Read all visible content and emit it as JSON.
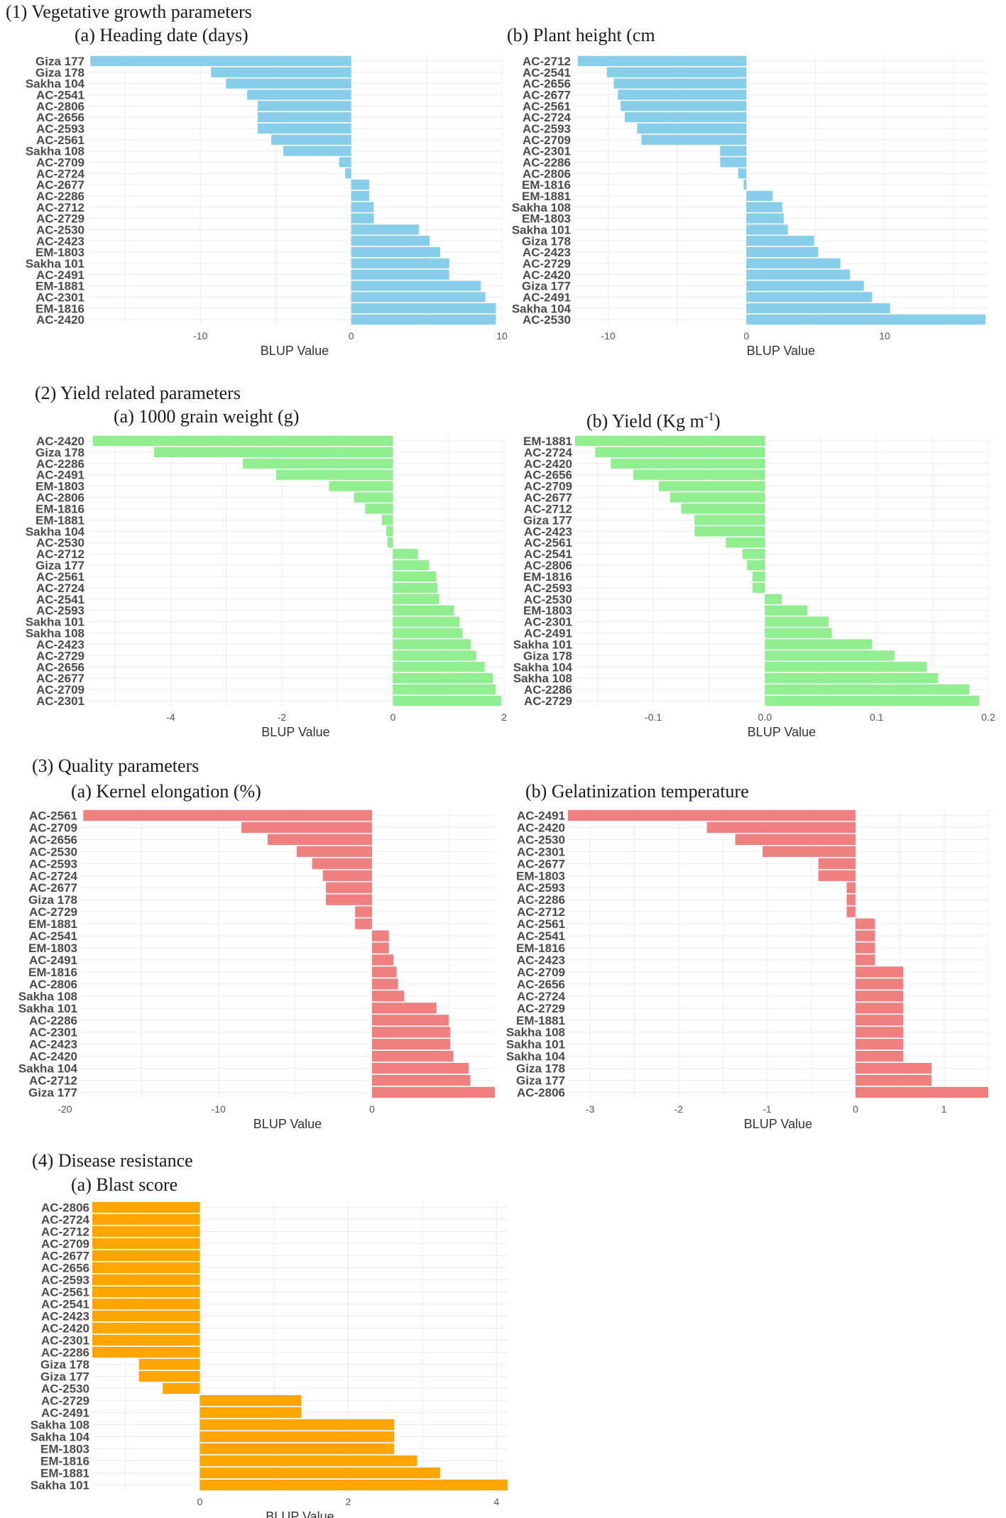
{
  "sections": [
    {
      "title": "(1) Vegetative growth parameters"
    },
    {
      "title": "(2) Yield related parameters"
    },
    {
      "title": "(3) Quality parameters"
    },
    {
      "title": "(4) Disease resistance"
    }
  ],
  "colors": {
    "vegetative": "#87ceeb",
    "yield": "#90ee90",
    "quality": "#f08080",
    "disease": "#ffa500"
  },
  "chart_data": [
    {
      "id": "heading",
      "type": "bar",
      "orientation": "horizontal",
      "title": "(a) Heading date (days)",
      "xlabel": "BLUP Value",
      "ylabel": "",
      "xlim": [
        -17.5,
        10
      ],
      "xticks": [
        -10,
        0,
        10
      ],
      "xtick_labels": [
        "-10",
        "0",
        "10"
      ],
      "categories": [
        "Giza 177",
        "Giza 178",
        "Sakha 104",
        "AC-2541",
        "AC-2806",
        "AC-2656",
        "AC-2593",
        "AC-2561",
        "Sakha 108",
        "AC-2709",
        "AC-2724",
        "AC-2677",
        "AC-2286",
        "AC-2712",
        "AC-2729",
        "AC-2530",
        "AC-2423",
        "EM-1803",
        "Sakha 101",
        "AC-2491",
        "EM-1881",
        "AC-2301",
        "EM-1816",
        "AC-2420"
      ],
      "values": [
        -17.3,
        -9.3,
        -8.3,
        -6.9,
        -6.2,
        -6.2,
        -6.2,
        -5.3,
        -4.5,
        -0.8,
        -0.4,
        1.2,
        1.2,
        1.5,
        1.5,
        4.5,
        5.2,
        5.9,
        6.5,
        6.5,
        8.6,
        8.9,
        9.6,
        9.6
      ]
    },
    {
      "id": "height",
      "type": "bar",
      "orientation": "horizontal",
      "title": "(b) Plant height (cm",
      "xlabel": "BLUP Value",
      "ylabel": "",
      "xlim": [
        -12.5,
        17.5
      ],
      "xticks": [
        -10,
        0,
        10
      ],
      "xtick_labels": [
        "-10",
        "0",
        "10"
      ],
      "categories": [
        "AC-2712",
        "AC-2541",
        "AC-2656",
        "AC-2677",
        "AC-2561",
        "AC-2724",
        "AC-2593",
        "AC-2709",
        "AC-2301",
        "AC-2286",
        "AC-2806",
        "EM-1816",
        "EM-1881",
        "Sakha 108",
        "EM-1803",
        "Sakha 101",
        "Giza 178",
        "AC-2423",
        "AC-2729",
        "AC-2420",
        "Giza 177",
        "AC-2491",
        "Sakha 104",
        "AC-2530"
      ],
      "values": [
        -12.2,
        -10.1,
        -9.6,
        -9.3,
        -9.1,
        -8.8,
        -7.9,
        -7.6,
        -1.9,
        -1.9,
        -0.6,
        -0.2,
        1.9,
        2.6,
        2.7,
        3.0,
        4.9,
        5.2,
        6.8,
        7.5,
        8.5,
        9.1,
        10.4,
        17.3
      ]
    },
    {
      "id": "grain",
      "type": "bar",
      "orientation": "horizontal",
      "title": "(a) 1000 grain weight (g)",
      "xlabel": "BLUP Value",
      "ylabel": "",
      "xlim": [
        -5.5,
        2.0
      ],
      "xticks": [
        -4,
        -2,
        0,
        2
      ],
      "xtick_labels": [
        "-4",
        "-2",
        "0",
        "2"
      ],
      "categories": [
        "AC-2420",
        "Giza 178",
        "AC-2286",
        "AC-2491",
        "EM-1803",
        "AC-2806",
        "EM-1816",
        "EM-1881",
        "Sakha 104",
        "AC-2530",
        "AC-2712",
        "Giza 177",
        "AC-2561",
        "AC-2724",
        "AC-2541",
        "AC-2593",
        "Sakha 101",
        "Sakha 108",
        "AC-2423",
        "AC-2729",
        "AC-2656",
        "AC-2677",
        "AC-2709",
        "AC-2301"
      ],
      "values": [
        -5.4,
        -4.3,
        -2.7,
        -2.1,
        -1.15,
        -0.7,
        -0.5,
        -0.2,
        -0.12,
        -0.1,
        0.45,
        0.65,
        0.78,
        0.8,
        0.83,
        1.1,
        1.2,
        1.25,
        1.4,
        1.5,
        1.65,
        1.8,
        1.85,
        1.95
      ]
    },
    {
      "id": "yield",
      "type": "bar",
      "orientation": "horizontal",
      "title": "(b) Yield (Kg m-1)",
      "xlabel": "BLUP Value",
      "ylabel": "",
      "xlim": [
        -0.17,
        0.2
      ],
      "xticks": [
        -0.1,
        0.0,
        0.1,
        0.2
      ],
      "xtick_labels": [
        "-0.1",
        "0.0",
        "0.1",
        "0.2"
      ],
      "categories": [
        "EM-1881",
        "AC-2724",
        "AC-2420",
        "AC-2656",
        "AC-2709",
        "AC-2677",
        "AC-2712",
        "Giza 177",
        "AC-2423",
        "AC-2561",
        "AC-2541",
        "AC-2806",
        "EM-1816",
        "AC-2593",
        "AC-2530",
        "EM-1803",
        "AC-2301",
        "AC-2491",
        "Sakha 101",
        "Giza 178",
        "Sakha 104",
        "Sakha 108",
        "AC-2286",
        "AC-2729"
      ],
      "values": [
        -0.17,
        -0.152,
        -0.138,
        -0.118,
        -0.095,
        -0.085,
        -0.075,
        -0.063,
        -0.063,
        -0.035,
        -0.02,
        -0.016,
        -0.011,
        -0.011,
        0.015,
        0.038,
        0.057,
        0.06,
        0.096,
        0.116,
        0.145,
        0.155,
        0.183,
        0.192
      ]
    },
    {
      "id": "elong",
      "type": "bar",
      "orientation": "horizontal",
      "title": "(a) Kernel elongation (%)",
      "xlabel": "BLUP Value",
      "ylabel": "",
      "xlim": [
        -19.0,
        8.0
      ],
      "xticks": [
        -20,
        -10,
        0
      ],
      "xtick_labels": [
        "-20",
        "-10",
        "0"
      ],
      "categories": [
        "AC-2561",
        "AC-2709",
        "AC-2656",
        "AC-2530",
        "AC-2593",
        "AC-2724",
        "AC-2677",
        "Giza 178",
        "AC-2729",
        "EM-1881",
        "AC-2541",
        "EM-1803",
        "AC-2491",
        "EM-1816",
        "AC-2806",
        "Sakha 108",
        "Sakha 101",
        "AC-2286",
        "AC-2301",
        "AC-2423",
        "AC-2420",
        "Sakha 104",
        "AC-2712",
        "Giza 177"
      ],
      "values": [
        -18.8,
        -8.5,
        -6.8,
        -4.9,
        -3.9,
        -3.2,
        -3.0,
        -3.0,
        -1.1,
        -1.1,
        1.1,
        1.1,
        1.4,
        1.6,
        1.7,
        2.1,
        4.2,
        5.0,
        5.1,
        5.1,
        5.3,
        6.3,
        6.4,
        8.0
      ]
    },
    {
      "id": "gel",
      "type": "bar",
      "orientation": "horizontal",
      "title": "(b) Gelatinization temperature",
      "xlabel": "BLUP Value",
      "ylabel": "",
      "xlim": [
        -3.25,
        1.5
      ],
      "xticks": [
        -3,
        -2,
        -1,
        0,
        1
      ],
      "xtick_labels": [
        "-3",
        "-2",
        "-1",
        "0",
        "1"
      ],
      "categories": [
        "AC-2491",
        "AC-2420",
        "AC-2530",
        "AC-2301",
        "AC-2677",
        "EM-1803",
        "AC-2593",
        "AC-2286",
        "AC-2712",
        "AC-2561",
        "AC-2541",
        "EM-1816",
        "AC-2423",
        "AC-2709",
        "AC-2656",
        "AC-2724",
        "AC-2729",
        "EM-1881",
        "Sakha 108",
        "Sakha 101",
        "Sakha 104",
        "Giza 178",
        "Giza 177",
        "AC-2806"
      ],
      "values": [
        -3.25,
        -1.68,
        -1.36,
        -1.05,
        -0.42,
        -0.42,
        -0.1,
        -0.1,
        -0.1,
        0.22,
        0.22,
        0.22,
        0.22,
        0.54,
        0.54,
        0.54,
        0.54,
        0.54,
        0.54,
        0.54,
        0.54,
        0.86,
        0.86,
        1.5
      ]
    },
    {
      "id": "blast",
      "type": "bar",
      "orientation": "horizontal",
      "title": "(a) Blast score",
      "xlabel": "BLUP Value",
      "ylabel": "",
      "xlim": [
        -1.45,
        4.15
      ],
      "xticks": [
        0,
        2,
        4
      ],
      "xtick_labels": [
        "0",
        "2",
        "4"
      ],
      "categories": [
        "AC-2806",
        "AC-2724",
        "AC-2712",
        "AC-2709",
        "AC-2677",
        "AC-2656",
        "AC-2593",
        "AC-2561",
        "AC-2541",
        "AC-2423",
        "AC-2420",
        "AC-2301",
        "AC-2286",
        "Giza 178",
        "Giza 177",
        "AC-2530",
        "AC-2729",
        "AC-2491",
        "Sakha 108",
        "Sakha 104",
        "EM-1803",
        "EM-1816",
        "EM-1881",
        "Sakha 101"
      ],
      "values": [
        -1.45,
        -1.45,
        -1.45,
        -1.45,
        -1.45,
        -1.45,
        -1.45,
        -1.45,
        -1.45,
        -1.45,
        -1.45,
        -1.45,
        -1.45,
        -0.82,
        -0.82,
        -0.5,
        1.37,
        1.37,
        2.62,
        2.62,
        2.62,
        2.93,
        3.24,
        4.15
      ]
    }
  ]
}
